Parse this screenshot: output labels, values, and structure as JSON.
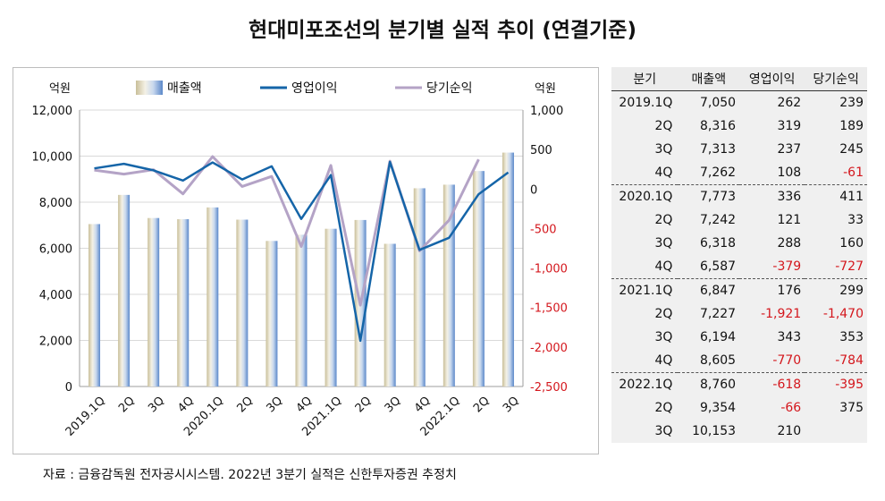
{
  "title": "현대미포조선의 분기별 실적 추이 (연결기준)",
  "source": "자료 : 금융감독원 전자공시시스템. 2022년 3분기 실적은 신한투자증권 추정치",
  "colors": {
    "operating_line": "#1565a8",
    "net_line": "#b4a3c6",
    "negative_text": "#d4171d",
    "grid": "#d9d9d9"
  },
  "chart_data": {
    "type": "bar",
    "categories": [
      "2019.1Q",
      "2Q",
      "3Q",
      "4Q",
      "2020.1Q",
      "2Q",
      "3Q",
      "4Q",
      "2021.1Q",
      "2Q",
      "3Q",
      "4Q",
      "2022.1Q",
      "2Q",
      "3Q"
    ],
    "series": [
      {
        "name": "매출액",
        "type": "bar",
        "axis": "left",
        "values": [
          7050,
          8316,
          7313,
          7262,
          7773,
          7242,
          6318,
          6587,
          6847,
          7227,
          6194,
          8605,
          8760,
          9354,
          10153
        ]
      },
      {
        "name": "영업이익",
        "type": "line",
        "axis": "right",
        "values": [
          262,
          319,
          237,
          108,
          336,
          121,
          288,
          -379,
          176,
          -1921,
          343,
          -770,
          -618,
          -66,
          210
        ]
      },
      {
        "name": "당기순익",
        "type": "line",
        "axis": "right",
        "values": [
          239,
          189,
          245,
          -61,
          411,
          33,
          160,
          -727,
          299,
          -1470,
          353,
          -784,
          -395,
          375,
          null
        ]
      }
    ],
    "ylabel": "억원",
    "y2label": "억원",
    "ylim": [
      0,
      12000
    ],
    "y2lim": [
      -2500,
      1000
    ],
    "yticks": [
      "0",
      "2,000",
      "4,000",
      "6,000",
      "8,000",
      "10,000",
      "12,000"
    ],
    "y2ticks": [
      "-2,500",
      "-2,000",
      "-1,500",
      "-1,000",
      "-500",
      "0",
      "500",
      "1,000"
    ],
    "grid": true,
    "legend": "top"
  },
  "table": {
    "headers": [
      "분기",
      "매출액",
      "영업이익",
      "당기순익"
    ],
    "rows": [
      [
        "2019.1Q",
        "7,050",
        "262",
        "239"
      ],
      [
        "2Q",
        "8,316",
        "319",
        "189"
      ],
      [
        "3Q",
        "7,313",
        "237",
        "245"
      ],
      [
        "4Q",
        "7,262",
        "108",
        "-61"
      ],
      [
        "2020.1Q",
        "7,773",
        "336",
        "411"
      ],
      [
        "2Q",
        "7,242",
        "121",
        "33"
      ],
      [
        "3Q",
        "6,318",
        "288",
        "160"
      ],
      [
        "4Q",
        "6,587",
        "-379",
        "-727"
      ],
      [
        "2021.1Q",
        "6,847",
        "176",
        "299"
      ],
      [
        "2Q",
        "7,227",
        "-1,921",
        "-1,470"
      ],
      [
        "3Q",
        "6,194",
        "343",
        "353"
      ],
      [
        "4Q",
        "8,605",
        "-770",
        "-784"
      ],
      [
        "2022.1Q",
        "8,760",
        "-618",
        "-395"
      ],
      [
        "2Q",
        "9,354",
        "-66",
        "375"
      ],
      [
        "3Q",
        "10,153",
        "210",
        ""
      ]
    ]
  }
}
